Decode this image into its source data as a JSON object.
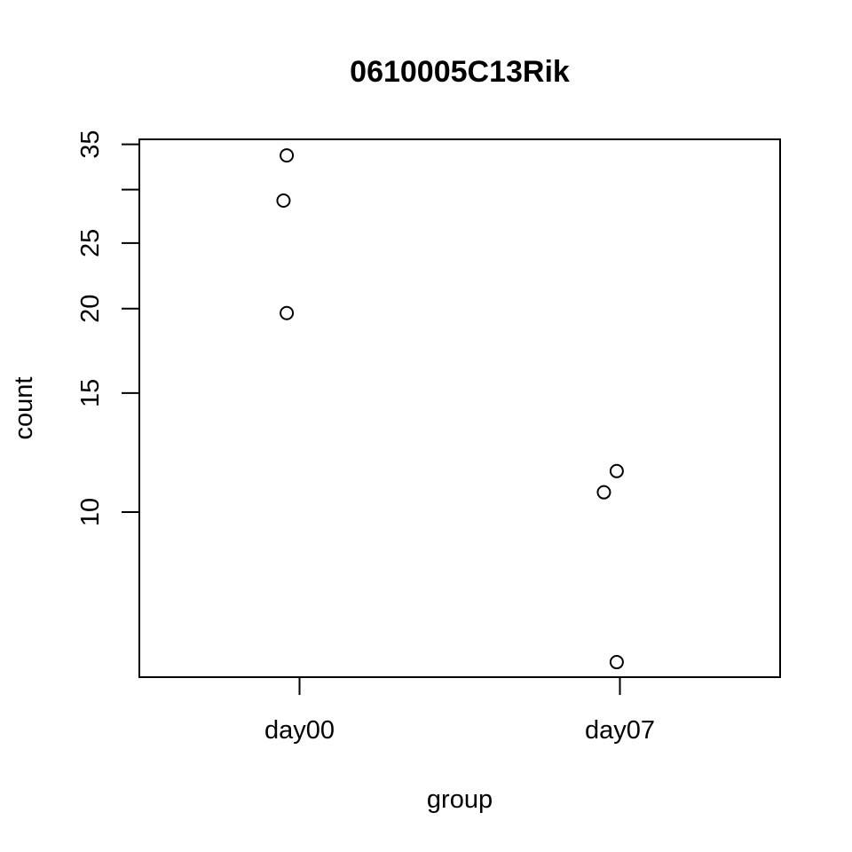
{
  "chart_data": {
    "type": "scatter",
    "title": "0610005C13Rik",
    "xlabel": "group",
    "ylabel": "count",
    "categories": [
      "day00",
      "day07"
    ],
    "y_scale": "log",
    "ylim": [
      5.7,
      35.6
    ],
    "y_ticks": [
      10,
      15,
      20,
      25,
      30,
      35
    ],
    "y_tick_labels": [
      "10",
      "15",
      "20",
      "25",
      "",
      "35"
    ],
    "grid": false,
    "points": [
      {
        "group": "day00",
        "jitter": -0.04,
        "y": 33.7
      },
      {
        "group": "day00",
        "jitter": -0.05,
        "y": 28.9
      },
      {
        "group": "day00",
        "jitter": -0.04,
        "y": 19.7
      },
      {
        "group": "day07",
        "jitter": -0.01,
        "y": 11.5
      },
      {
        "group": "day07",
        "jitter": -0.05,
        "y": 10.7
      },
      {
        "group": "day07",
        "jitter": -0.01,
        "y": 6.0
      }
    ]
  }
}
